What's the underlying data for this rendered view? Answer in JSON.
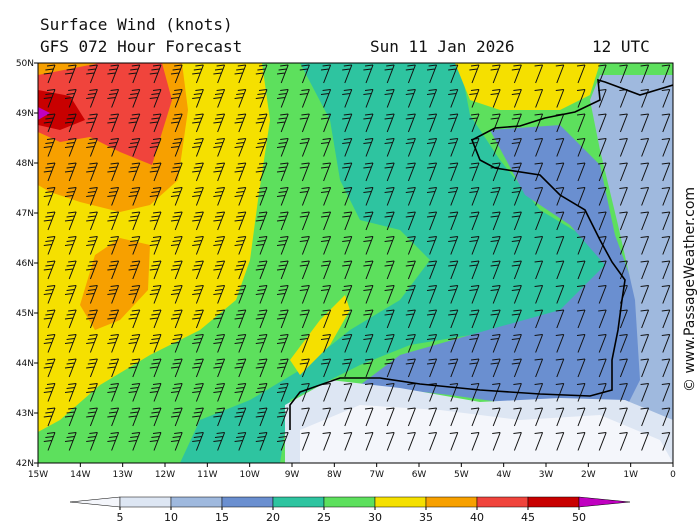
{
  "header": {
    "title": "Surface Wind (knots)",
    "model": "GFS 072 Hour Forecast",
    "date": "Sun 11 Jan 2026",
    "time": "12 UTC"
  },
  "axes": {
    "longitudes": [
      "15W",
      "14W",
      "13W",
      "12W",
      "11W",
      "10W",
      "9W",
      "8W",
      "7W",
      "6W",
      "5W",
      "4W",
      "3W",
      "2W",
      "1W",
      "0"
    ],
    "latitudes": [
      "50N",
      "49N",
      "48N",
      "47N",
      "46N",
      "45N",
      "44N",
      "43N",
      "42N"
    ]
  },
  "colorbar": {
    "ticks": [
      5,
      10,
      15,
      20,
      25,
      30,
      35,
      40,
      45,
      50
    ],
    "colors": [
      "#f4f6fb",
      "#dde6f3",
      "#9fb9de",
      "#6a8fd0",
      "#2ec4a0",
      "#5de05d",
      "#f5e000",
      "#f7a000",
      "#f0443c",
      "#c80000",
      "#c000c0"
    ]
  },
  "credit": "© www.PassageWeather.com"
}
